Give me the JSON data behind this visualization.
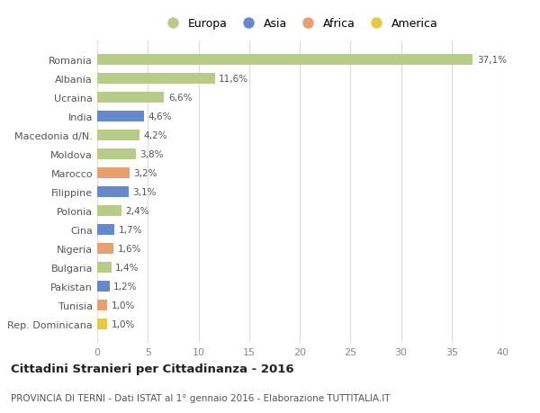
{
  "categories": [
    "Rep. Dominicana",
    "Tunisia",
    "Pakistan",
    "Bulgaria",
    "Nigeria",
    "Cina",
    "Polonia",
    "Filippine",
    "Marocco",
    "Moldova",
    "Macedonia d/N.",
    "India",
    "Ucraina",
    "Albania",
    "Romania"
  ],
  "values": [
    1.0,
    1.0,
    1.2,
    1.4,
    1.6,
    1.7,
    2.4,
    3.1,
    3.2,
    3.8,
    4.2,
    4.6,
    6.6,
    11.6,
    37.1
  ],
  "labels": [
    "1,0%",
    "1,0%",
    "1,2%",
    "1,4%",
    "1,6%",
    "1,7%",
    "2,4%",
    "3,1%",
    "3,2%",
    "3,8%",
    "4,2%",
    "4,6%",
    "6,6%",
    "11,6%",
    "37,1%"
  ],
  "colors": [
    "#e8c84a",
    "#e8a070",
    "#6688cc",
    "#b8cc88",
    "#e8a070",
    "#6688cc",
    "#b8cc88",
    "#6688cc",
    "#e8a070",
    "#b8cc88",
    "#b8cc88",
    "#6688cc",
    "#b8cc88",
    "#b8cc88",
    "#b8cc88"
  ],
  "legend_labels": [
    "Europa",
    "Asia",
    "Africa",
    "America"
  ],
  "legend_colors": [
    "#b8cc88",
    "#6688cc",
    "#e8a070",
    "#e8c84a"
  ],
  "title": "Cittadini Stranieri per Cittadinanza - 2016",
  "subtitle": "PROVINCIA DI TERNI - Dati ISTAT al 1° gennaio 2016 - Elaborazione TUTTITALIA.IT",
  "xlim": [
    0,
    40
  ],
  "xticks": [
    0,
    5,
    10,
    15,
    20,
    25,
    30,
    35,
    40
  ],
  "bg_color": "#ffffff",
  "grid_color": "#dddddd",
  "bar_height": 0.55
}
